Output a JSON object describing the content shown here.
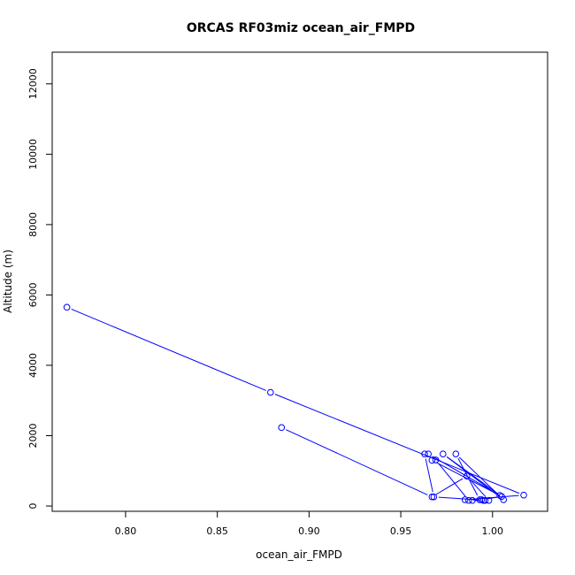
{
  "chart_data": {
    "type": "line",
    "title": "ORCAS RF03miz ocean_air_FMPD",
    "xlabel": "ocean_air_FMPD",
    "ylabel": "Altitude (m)",
    "xlim": [
      0.76,
      1.03
    ],
    "ylim": [
      -150,
      12900
    ],
    "x_ticks": [
      0.8,
      0.85,
      0.9,
      0.95,
      1.0
    ],
    "x_tick_labels": [
      "0.80",
      "0.85",
      "0.90",
      "0.95",
      "1.00"
    ],
    "y_ticks": [
      0,
      2000,
      4000,
      6000,
      8000,
      10000,
      12000
    ],
    "y_tick_labels": [
      "0",
      "2000",
      "4000",
      "6000",
      "8000",
      "10000",
      "12000"
    ],
    "grid": false,
    "legend": "none",
    "colors": {
      "series": "#0000ff",
      "axes": "#000000",
      "background": "#ffffff"
    },
    "series": [
      {
        "x": [
          0.768,
          0.879,
          1.017,
          0.985,
          0.989,
          0.994,
          1.005,
          0.973,
          1.006,
          0.98,
          0.993,
          0.995,
          0.987,
          0.969,
          0.967,
          1.004,
          0.965,
          0.963,
          0.968,
          0.996,
          0.998,
          0.986,
          0.967,
          0.885
        ],
        "y": [
          5650,
          3230,
          310,
          180,
          160,
          180,
          270,
          1480,
          180,
          1480,
          180,
          160,
          160,
          1310,
          1300,
          300,
          1480,
          1480,
          260,
          160,
          160,
          850,
          260,
          2230
        ]
      }
    ]
  }
}
